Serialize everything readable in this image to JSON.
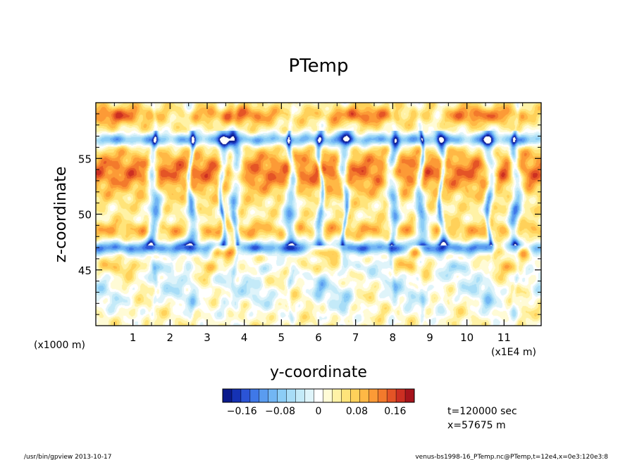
{
  "chart_data": {
    "type": "heatmap",
    "title": "PTemp",
    "xlabel": "y-coordinate",
    "ylabel": "z-coordinate",
    "x_unit_left": "(x1000 m)",
    "x_unit_right": "(x1E4 m)",
    "xlim": [
      0,
      12
    ],
    "ylim": [
      40,
      60
    ],
    "x_ticks": [
      1,
      2,
      3,
      4,
      5,
      6,
      7,
      8,
      9,
      10,
      11
    ],
    "y_ticks": [
      45,
      50,
      55
    ],
    "colorbar": {
      "min": -0.2,
      "max": 0.2,
      "labels": [
        "-0.16",
        "-0.08",
        "0",
        "0.08",
        "0.16"
      ],
      "label_values": [
        -0.16,
        -0.08,
        0,
        0.08,
        0.16
      ],
      "colors": [
        "#0a1a8c",
        "#1532b4",
        "#2b54d6",
        "#3f78e8",
        "#5a9cf0",
        "#72b6f4",
        "#8ccdf6",
        "#a8ddf7",
        "#c4eaf8",
        "#dff4fa",
        "#ffffff",
        "#fffbd6",
        "#fff2a6",
        "#ffe47a",
        "#ffd15a",
        "#ffb845",
        "#fc9a36",
        "#f37a2c",
        "#e45426",
        "#cc2f22",
        "#a6141c"
      ]
    },
    "annotations": [
      "t=120000 sec",
      "x=57675 m"
    ]
  },
  "footer": {
    "left": "/usr/bin/gpview   2013-10-17",
    "right": "venus-bs1998-16_PTemp.nc@PTemp,t=12e4,x=0e3:120e3:8"
  }
}
